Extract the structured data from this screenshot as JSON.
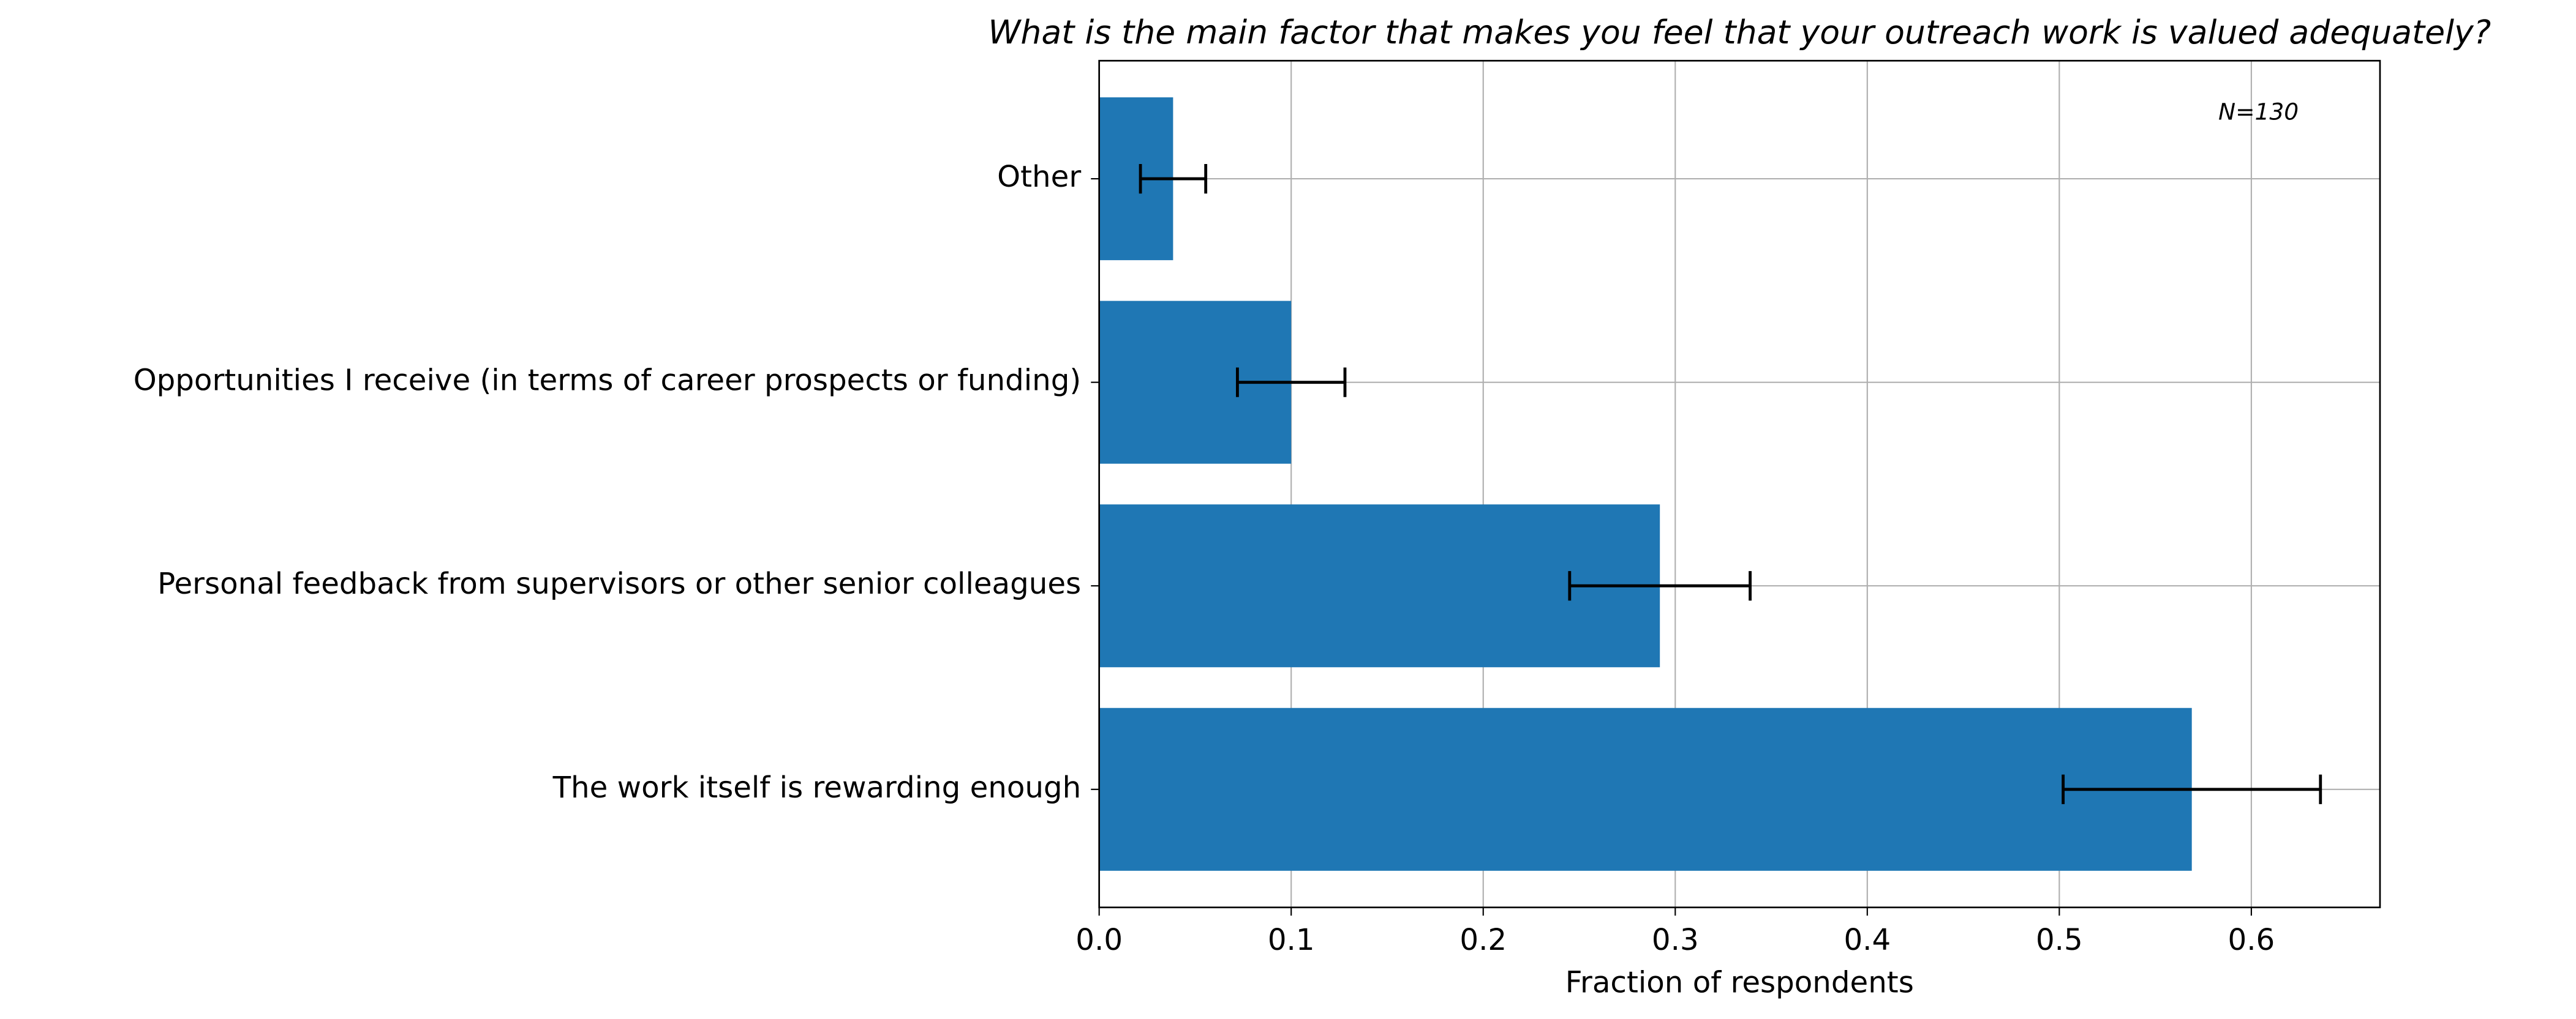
{
  "chart_data": {
    "type": "barh",
    "title": "What is the main factor that makes you feel that your outreach work is valued adequately?",
    "annotation": "N=130",
    "xlabel": "Fraction of respondents",
    "categories": [
      "The work itself is rewarding enough",
      "Personal feedback from supervisors or other senior colleagues",
      "Opportunities I receive (in terms of career prospects or funding)",
      "Other"
    ],
    "values": [
      0.569,
      0.292,
      0.1,
      0.0385
    ],
    "errors": [
      0.067,
      0.047,
      0.028,
      0.017
    ],
    "color": "#1f77b4",
    "xlim": [
      0,
      0.667
    ],
    "xticks": [
      {
        "value": 0,
        "label": "0.0"
      },
      0.1,
      0.2,
      0.3,
      0.4,
      0.5,
      0.6
    ],
    "grid": true
  }
}
